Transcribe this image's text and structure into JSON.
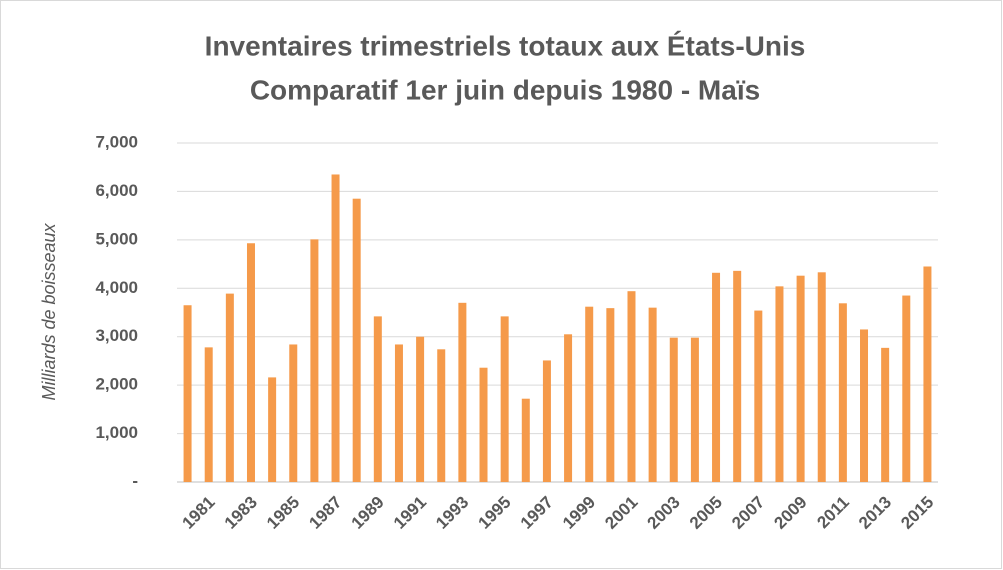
{
  "chart_data": {
    "type": "bar",
    "title": "Inventaires trimestriels totaux aux États-Unis",
    "subtitle": "Comparatif 1er juin depuis 1980 - Maïs",
    "y_label": "Milliards de boisseaux",
    "categories": [
      null,
      "1981",
      null,
      "1983",
      null,
      "1985",
      null,
      "1987",
      null,
      "1989",
      null,
      "1991",
      null,
      "1993",
      null,
      "1995",
      null,
      "1997",
      null,
      "1999",
      null,
      "2001",
      null,
      "2003",
      null,
      "2005",
      null,
      "2007",
      null,
      "2009",
      null,
      "2011",
      null,
      "2013",
      null,
      "2015"
    ],
    "values": [
      3650,
      2780,
      3890,
      4930,
      2160,
      2840,
      5010,
      6350,
      5850,
      3420,
      2840,
      3000,
      2740,
      3700,
      2360,
      3420,
      1720,
      2510,
      3050,
      3620,
      3590,
      3940,
      3600,
      2980,
      2980,
      4320,
      4360,
      3540,
      4040,
      4260,
      4330,
      3690,
      3150,
      2770,
      3850,
      4450
    ],
    "color": "#f59a4a",
    "ylim": [
      0,
      7000
    ],
    "yticks": [
      {
        "value": 0,
        "label": "-"
      },
      {
        "value": 1000,
        "label": "1,000"
      },
      {
        "value": 2000,
        "label": "2,000"
      },
      {
        "value": 3000,
        "label": "3,000"
      },
      {
        "value": 4000,
        "label": "4,000"
      },
      {
        "value": 5000,
        "label": "5,000"
      },
      {
        "value": 6000,
        "label": "6,000"
      },
      {
        "value": 7000,
        "label": "7,000"
      }
    ],
    "grid": true
  }
}
